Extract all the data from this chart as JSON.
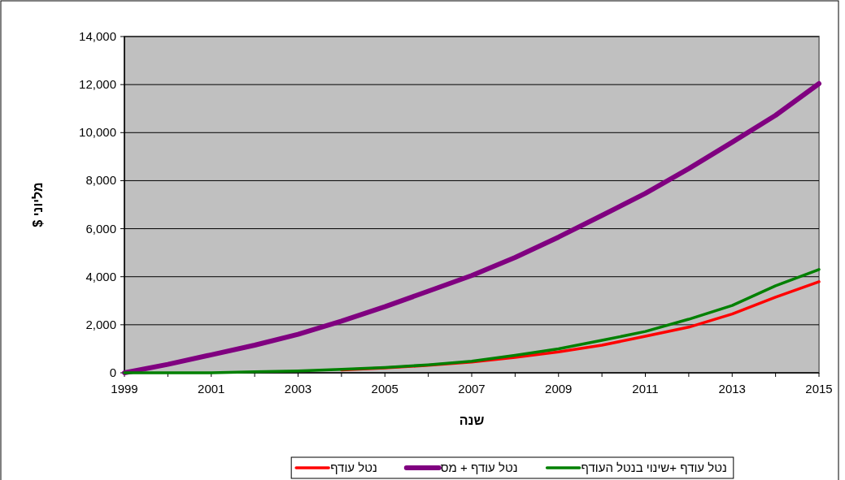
{
  "chart_data": {
    "type": "line",
    "xlabel": "שנה",
    "ylabel": "מליוני $",
    "x": [
      1999,
      2000,
      2001,
      2002,
      2003,
      2004,
      2005,
      2006,
      2007,
      2008,
      2009,
      2010,
      2011,
      2012,
      2013,
      2014,
      2015
    ],
    "series": [
      {
        "name": "נטל עודף",
        "color": "#ff0000",
        "values": [
          null,
          null,
          null,
          null,
          null,
          120,
          200,
          310,
          450,
          640,
          870,
          1150,
          1520,
          1900,
          2450,
          3150,
          3790
        ]
      },
      {
        "name": "נטל עודף + מס",
        "color": "#800080",
        "values": [
          0,
          350,
          750,
          1150,
          1600,
          2150,
          2750,
          3400,
          4050,
          4800,
          5650,
          6550,
          7470,
          8500,
          9600,
          10720,
          12040
        ]
      },
      {
        "name": "נטל עודף +שינוי בנטל העודף",
        "color": "#008000",
        "values": [
          0,
          0,
          0,
          40,
          80,
          140,
          220,
          330,
          480,
          730,
          1000,
          1350,
          1720,
          2230,
          2800,
          3620,
          4300
        ]
      }
    ],
    "xlim": [
      1999,
      2015
    ],
    "xticks": [
      1999,
      2001,
      2003,
      2005,
      2007,
      2009,
      2011,
      2013,
      2015
    ],
    "ylim": [
      0,
      14000
    ],
    "yticks": [
      {
        "value": 0,
        "label": "0"
      },
      {
        "value": 2000,
        "label": "2,000"
      },
      {
        "value": 4000,
        "label": "4,000"
      },
      {
        "value": 6000,
        "label": "6,000"
      },
      {
        "value": 8000,
        "label": "8,000"
      },
      {
        "value": 10000,
        "label": "10,000"
      },
      {
        "value": 12000,
        "label": "12,000"
      },
      {
        "value": 14000,
        "label": "14,000"
      }
    ],
    "grid": "y",
    "legend": "bottom",
    "marker": "none",
    "line_style": "solid"
  }
}
